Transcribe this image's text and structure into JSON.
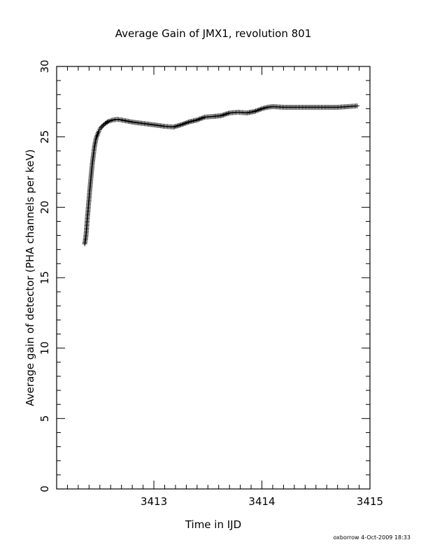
{
  "chart_data": {
    "type": "scatter",
    "title": "Average Gain of JMX1, revolution 801",
    "xlabel": "Time in IJD",
    "ylabel": "Average gain of detector (PHA channels per keV)",
    "xlim": [
      3412.1,
      3415.0
    ],
    "ylim": [
      0,
      30
    ],
    "x_ticks": [
      "3413",
      "3414",
      "3415"
    ],
    "y_ticks": [
      "0",
      "5",
      "10",
      "15",
      "20",
      "25",
      "30"
    ],
    "grid": false,
    "marker": "plus",
    "footer": "oxborrow   4-Oct-2009 18:33",
    "series": [
      {
        "x": [
          3412.36,
          3412.37,
          3412.375,
          3412.38,
          3412.385,
          3412.39,
          3412.395,
          3412.4,
          3412.405,
          3412.41,
          3412.415,
          3412.42,
          3412.425,
          3412.43,
          3412.435,
          3412.44,
          3412.445,
          3412.45,
          3412.455,
          3412.46,
          3412.465,
          3412.47,
          3412.48,
          3412.49,
          3412.5,
          3412.52,
          3412.55,
          3412.58,
          3412.62,
          3412.66,
          3412.7,
          3412.8,
          3412.9,
          3413.0,
          3413.1,
          3413.18,
          3413.25,
          3413.32,
          3413.4,
          3413.47,
          3413.55,
          3413.62,
          3413.7,
          3413.78,
          3413.86,
          3413.93,
          3414.0,
          3414.05,
          3414.1,
          3414.2,
          3414.3,
          3414.4,
          3414.5,
          3414.6,
          3414.7,
          3414.8,
          3414.88
        ],
        "y": [
          17.4,
          17.9,
          18.3,
          18.8,
          19.3,
          19.7,
          20.2,
          20.6,
          21.1,
          21.5,
          21.9,
          22.3,
          22.7,
          23.1,
          23.4,
          23.7,
          24.0,
          24.3,
          24.5,
          24.7,
          24.9,
          25.0,
          25.2,
          25.4,
          25.55,
          25.75,
          25.95,
          26.1,
          26.2,
          26.25,
          26.2,
          26.05,
          25.95,
          25.85,
          25.75,
          25.7,
          25.85,
          26.05,
          26.2,
          26.4,
          26.45,
          26.5,
          26.7,
          26.75,
          26.7,
          26.8,
          27.0,
          27.1,
          27.15,
          27.1,
          27.1,
          27.1,
          27.1,
          27.1,
          27.1,
          27.15,
          27.2
        ]
      }
    ]
  }
}
